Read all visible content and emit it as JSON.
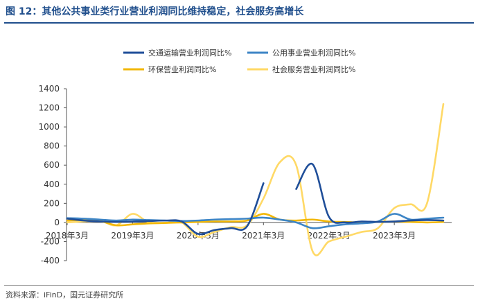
{
  "header": {
    "title": "图 12：其他公共事业类行业营业利润同比维持稳定，社会服务高增长"
  },
  "footer": {
    "source": "资料来源：iFinD，国元证券研究所"
  },
  "chart_data": {
    "type": "line",
    "x": [
      "2018年3月",
      "2018年6月",
      "2018年9月",
      "2018年12月",
      "2019年3月",
      "2019年6月",
      "2019年9月",
      "2019年12月",
      "2020年3月",
      "2020年6月",
      "2020年9月",
      "2020年12月",
      "2021年3月",
      "2021年6月",
      "2021年9月",
      "2021年12月",
      "2022年3月",
      "2022年6月",
      "2022年9月",
      "2022年12月",
      "2023年3月",
      "2023年6月",
      "2023年9月",
      "2023年12月"
    ],
    "x_tick_labels": [
      "2018年3月",
      "2019年3月",
      "2020年3月",
      "2021年3月",
      "2022年3月",
      "2023年3月"
    ],
    "series": [
      {
        "name": "交通运输营业利润同比%",
        "color": "#1f4e99",
        "values": [
          40,
          20,
          10,
          5,
          10,
          15,
          20,
          10,
          -120,
          -80,
          -60,
          -40,
          410,
          null,
          350,
          610,
          60,
          0,
          10,
          5,
          10,
          20,
          25,
          20
        ]
      },
      {
        "name": "公用事业营业利润同比%",
        "color": "#3d85c6",
        "values": [
          45,
          40,
          30,
          20,
          30,
          25,
          20,
          15,
          20,
          30,
          35,
          40,
          50,
          30,
          0,
          -60,
          -40,
          -20,
          -10,
          10,
          90,
          30,
          40,
          50
        ]
      },
      {
        "name": "环保营业利润同比%",
        "color": "#f2b705",
        "values": [
          20,
          25,
          15,
          -30,
          -20,
          -10,
          -5,
          0,
          5,
          10,
          10,
          20,
          90,
          30,
          20,
          30,
          10,
          5,
          0,
          5,
          10,
          5,
          0,
          5
        ]
      },
      {
        "name": "社会服务营业利润同比%",
        "color": "#ffd966",
        "values": [
          0,
          10,
          20,
          -30,
          90,
          0,
          -5,
          0,
          -150,
          -100,
          -50,
          -30,
          250,
          630,
          600,
          -300,
          -200,
          -150,
          -100,
          -60,
          150,
          190,
          200,
          1240
        ]
      }
    ],
    "ylim": [
      -400,
      1400
    ],
    "y_ticks": [
      1400,
      1200,
      1000,
      800,
      600,
      400,
      200,
      0,
      -200,
      -400
    ],
    "legend_position": "top",
    "grid": false
  }
}
